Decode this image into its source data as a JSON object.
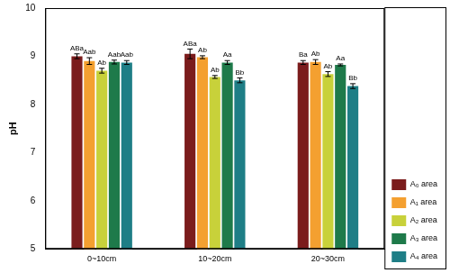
{
  "chart_data": {
    "type": "bar",
    "y_label": "pH",
    "categories": [
      "0~10cm",
      "10~20cm",
      "20~30cm"
    ],
    "series": [
      {
        "name": "A₀ area",
        "color": "#7b1c1c",
        "values": [
          9.0,
          9.05,
          8.87
        ],
        "errors": [
          0.05,
          0.1,
          0.04
        ],
        "letters": [
          "ABa",
          "ABa",
          "Ba"
        ]
      },
      {
        "name": "A₁ area",
        "color": "#f4a030",
        "values": [
          8.9,
          8.98,
          8.88
        ],
        "errors": [
          0.07,
          0.03,
          0.05
        ],
        "letters": [
          "Aab",
          "Ab",
          "Ab"
        ]
      },
      {
        "name": "A₂ area",
        "color": "#c8d13a",
        "values": [
          8.7,
          8.57,
          8.63
        ],
        "errors": [
          0.05,
          0.03,
          0.05
        ],
        "letters": [
          "Ab",
          "Ab",
          "Ab"
        ]
      },
      {
        "name": "A₃ area",
        "color": "#1e7a4a",
        "values": [
          8.88,
          8.87,
          8.82
        ],
        "errors": [
          0.04,
          0.04,
          0.02
        ],
        "letters": [
          "Aab",
          "Aa",
          "Aa"
        ]
      },
      {
        "name": "A₄ area",
        "color": "#1e7e86",
        "values": [
          8.87,
          8.5,
          8.38
        ],
        "errors": [
          0.04,
          0.05,
          0.05
        ],
        "letters": [
          "Aab",
          "Bb",
          "Bb"
        ]
      }
    ],
    "ylim": [
      5,
      10
    ],
    "yticks": [
      5,
      6,
      7,
      8,
      9,
      10
    ],
    "grid": false,
    "legend": "lower right"
  }
}
